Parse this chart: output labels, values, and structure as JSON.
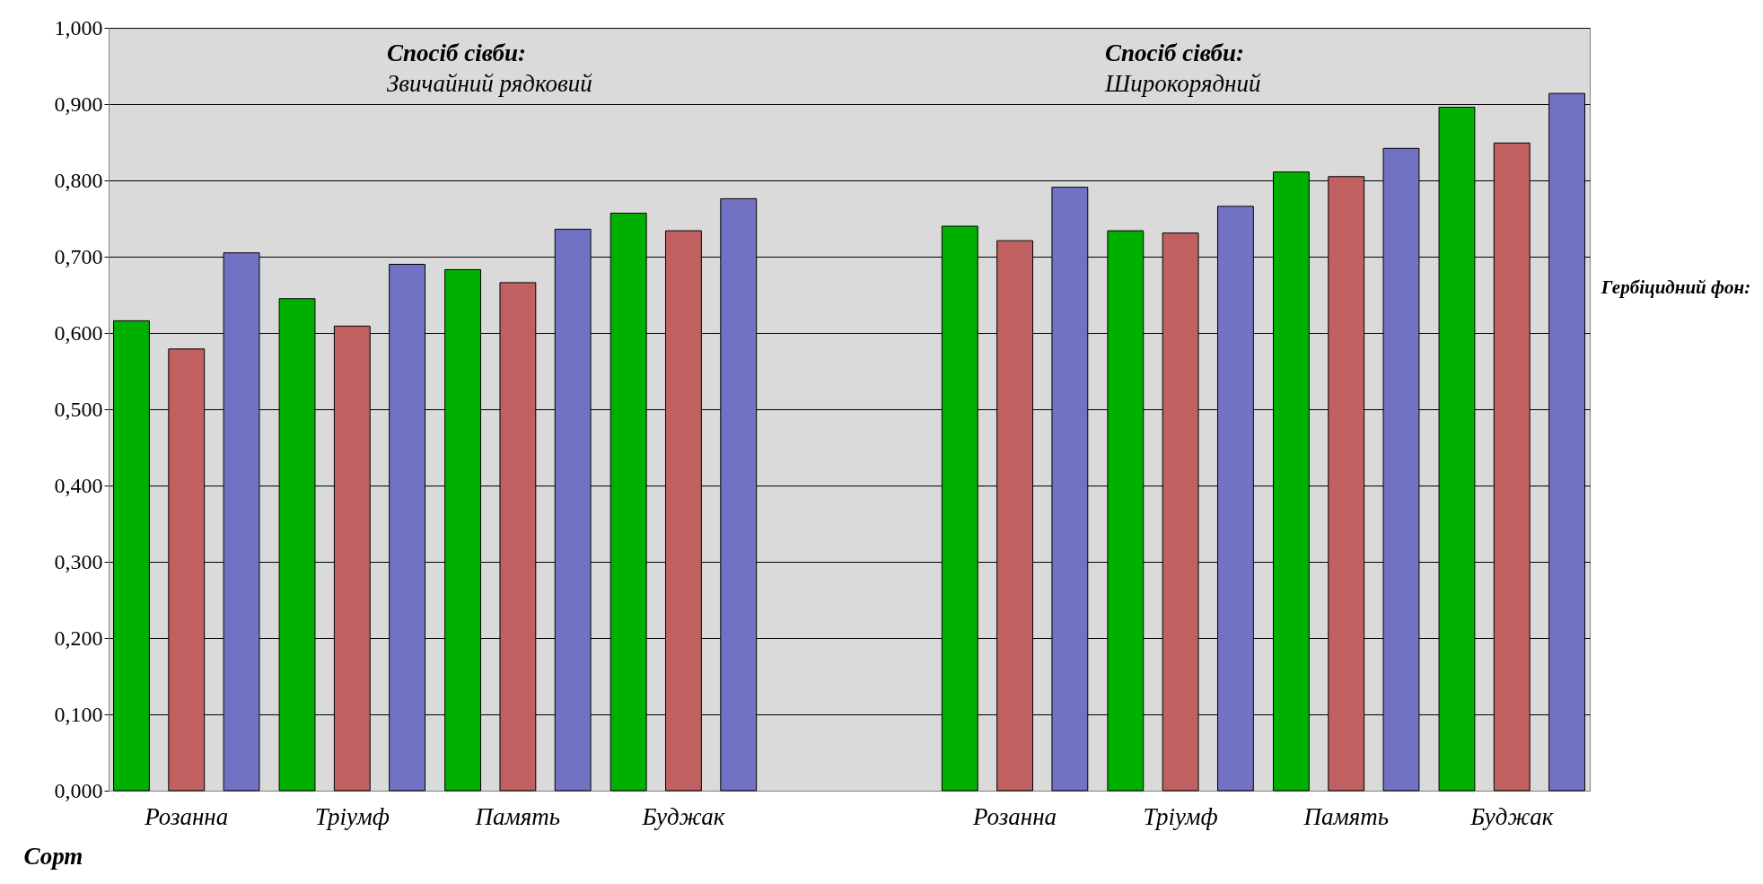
{
  "chart_data": {
    "type": "bar",
    "categories": [
      "Розанна",
      "Тріумф",
      "Память",
      "Буджак",
      null,
      "Розанна",
      "Тріумф",
      "Память",
      "Буджак"
    ],
    "series": [
      {
        "color": "#00b000",
        "values": [
          0.616,
          0.645,
          0.683,
          0.757,
          null,
          0.74,
          0.734,
          0.811,
          0.896
        ]
      },
      {
        "color": "#c06060",
        "values": [
          0.579,
          0.609,
          0.666,
          0.734,
          null,
          0.721,
          0.731,
          0.805,
          0.849
        ]
      },
      {
        "color": "#7272c4",
        "values": [
          0.705,
          0.69,
          0.736,
          0.776,
          null,
          0.791,
          0.766,
          0.842,
          0.914
        ]
      }
    ],
    "xlabel": "Сорт",
    "annotations": [
      "Спосіб сівби:",
      "Звичайний рядковий",
      "Спосіб сівби:",
      "Широкорядний",
      "Гербіцидний фон:"
    ],
    "ylim": [
      0,
      1
    ],
    "yticks": [
      {
        "value": 0,
        "label": "0,000"
      },
      {
        "value": 0.1,
        "label": "0,100"
      },
      {
        "value": 0.2,
        "label": "0,200"
      },
      {
        "value": 0.3,
        "label": "0,300"
      },
      {
        "value": 0.4,
        "label": "0,400"
      },
      {
        "value": 0.5,
        "label": "0,500"
      },
      {
        "value": 0.6,
        "label": "0,600"
      },
      {
        "value": 0.7,
        "label": "0,700"
      },
      {
        "value": 0.8,
        "label": "0,800"
      },
      {
        "value": 0.9,
        "label": "0,900"
      },
      {
        "value": 1,
        "label": "1,000"
      }
    ],
    "grid": "y"
  }
}
